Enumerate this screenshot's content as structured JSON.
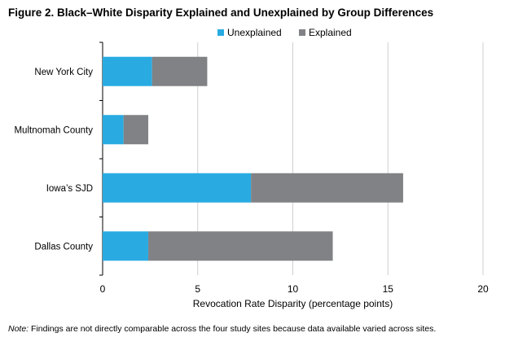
{
  "title": "Figure 2. Black–White Disparity Explained and Unexplained by Group Differences",
  "note": {
    "label": "Note:",
    "text": "Findings are not directly comparable across the four study sites because data available varied across sites."
  },
  "chart_data": {
    "type": "bar",
    "orientation": "horizontal",
    "stacked": true,
    "categories": [
      "New York City",
      "Multnomah County",
      "Iowa’s SJD",
      "Dallas County"
    ],
    "series": [
      {
        "name": "Unexplained",
        "values": [
          2.6,
          1.1,
          7.8,
          2.4
        ],
        "color": "#29abe2"
      },
      {
        "name": "Explained",
        "values": [
          2.9,
          1.3,
          8.0,
          9.7
        ],
        "color": "#808285"
      }
    ],
    "xlabel": "Revocation Rate Disparity (percentage points)",
    "ylabel": "",
    "xlim": [
      0,
      20
    ],
    "xticks": [
      0,
      5,
      10,
      15,
      20
    ],
    "grid": true,
    "legend_position": "top"
  }
}
